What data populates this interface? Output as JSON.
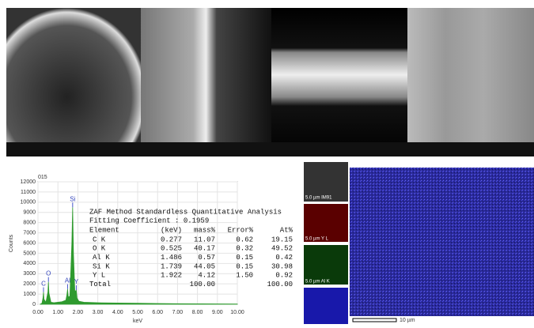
{
  "chart_data": {
    "type": "area",
    "title": "015",
    "ylabel": "Counts",
    "xlabel": "keV",
    "x": [
      0.1,
      0.2,
      0.25,
      0.277,
      0.3,
      0.4,
      0.5,
      0.525,
      0.55,
      0.65,
      0.8,
      1.0,
      1.2,
      1.4,
      1.45,
      1.486,
      1.52,
      1.6,
      1.7,
      1.739,
      1.78,
      1.85,
      1.922,
      1.96,
      2.05,
      2.3,
      3,
      4,
      5,
      6,
      7,
      8,
      9,
      10
    ],
    "series": [
      {
        "color": "#2e9a2e",
        "values": [
          0,
          100,
          600,
          1200,
          500,
          200,
          1200,
          2200,
          1100,
          200,
          150,
          200,
          250,
          400,
          900,
          1500,
          700,
          800,
          6000,
          9500,
          5000,
          1200,
          1400,
          600,
          300,
          200,
          150,
          120,
          100,
          80,
          60,
          50,
          40,
          30
        ]
      }
    ],
    "xlim": [
      0,
      10
    ],
    "ylim": [
      0,
      12000
    ],
    "xticks": [
      {
        "value": 0,
        "label": "0.00"
      },
      {
        "value": 1,
        "label": "1.00"
      },
      {
        "value": 2,
        "label": "2.00"
      },
      {
        "value": 3,
        "label": "3.00"
      },
      {
        "value": 4,
        "label": "4.00"
      },
      {
        "value": 5,
        "label": "5.00"
      },
      {
        "value": 6,
        "label": "6.00"
      },
      {
        "value": 7,
        "label": "7.00"
      },
      {
        "value": 8,
        "label": "8.00"
      },
      {
        "value": 9,
        "label": "9.00"
      },
      {
        "value": 10,
        "label": "10.00"
      }
    ],
    "yticks": [
      0,
      1000,
      2000,
      3000,
      4000,
      5000,
      6000,
      7000,
      8000,
      9000,
      10000,
      11000,
      12000
    ],
    "grid": true,
    "peak_labels": [
      {
        "label": "C",
        "x": 0.277
      },
      {
        "label": "O",
        "x": 0.525
      },
      {
        "label": "Al",
        "x": 1.486
      },
      {
        "label": "Si",
        "x": 1.739
      },
      {
        "label": "Y",
        "x": 1.922
      }
    ],
    "table": {
      "title": "ZAF Method Standardless Quantitative Analysis",
      "fitting": "Fitting Coefficient : 0.1959",
      "columns": [
        "Element",
        "(keV)",
        "mass%",
        "Error%",
        "At%"
      ],
      "rows": [
        [
          "C K",
          "0.277",
          "11.07",
          "0.62",
          "19.15"
        ],
        [
          "O K",
          "0.525",
          "40.17",
          "0.32",
          "49.52"
        ],
        [
          "Al K",
          "1.486",
          "0.57",
          "0.15",
          "0.42"
        ],
        [
          "Si K",
          "1.739",
          "44.05",
          "0.15",
          "30.98"
        ],
        [
          "Y L",
          "1.922",
          "4.12",
          "1.50",
          "0.92"
        ],
        [
          "Total",
          "",
          "100.00",
          "",
          "100.00"
        ]
      ]
    }
  },
  "maps": {
    "labels": [
      "5.0 µm IM91",
      "5.0 µm Y L",
      "5.0 µm Al K"
    ],
    "scale": "10 µm"
  }
}
